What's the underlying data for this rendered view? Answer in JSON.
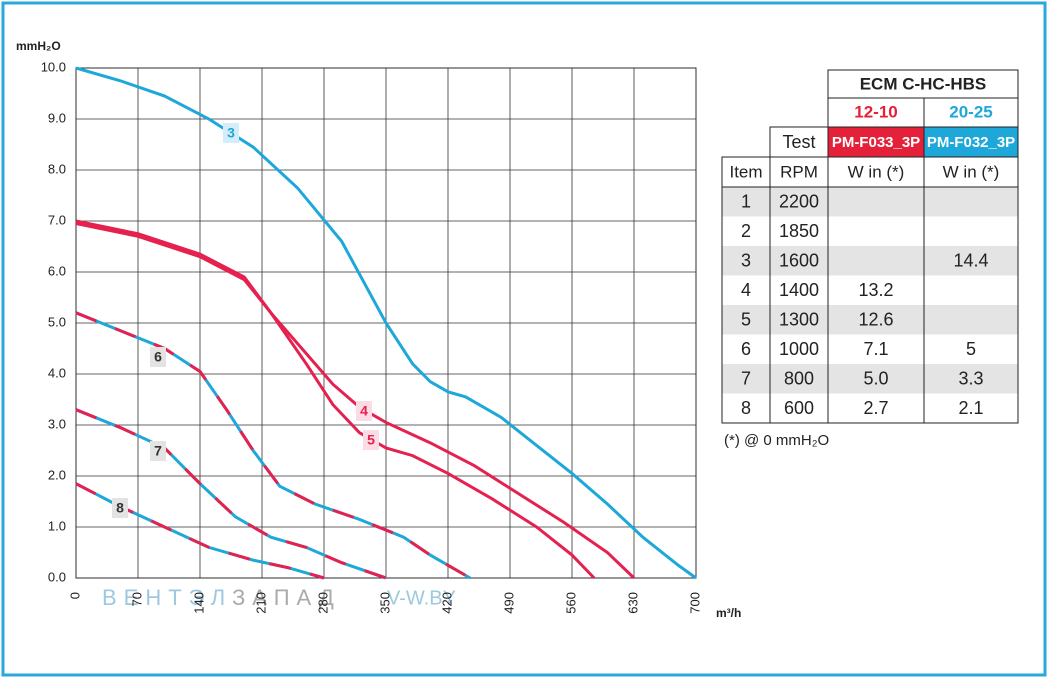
{
  "chart_data": {
    "type": "line",
    "y_label": "mmH₂O",
    "x_label": "m³/h",
    "xlim": [
      0,
      700
    ],
    "ylim": [
      0,
      10
    ],
    "xticks": [
      0,
      70,
      140,
      210,
      280,
      350,
      420,
      490,
      560,
      630,
      700
    ],
    "yticks": [
      {
        "value": 0,
        "label": "0.0"
      },
      {
        "value": 1,
        "label": "1.0"
      },
      {
        "value": 2,
        "label": "2.0"
      },
      {
        "value": 3,
        "label": "3.0"
      },
      {
        "value": 4,
        "label": "4.0"
      },
      {
        "value": 5,
        "label": "5.0"
      },
      {
        "value": 6,
        "label": "6.0"
      },
      {
        "value": 7,
        "label": "7.0"
      },
      {
        "value": 8,
        "label": "8.0"
      },
      {
        "value": 9,
        "label": "9.0"
      },
      {
        "value": 10,
        "label": "10.0"
      }
    ],
    "grid": true,
    "series": [
      {
        "name": "3",
        "color": "#1ea7d9",
        "dashed": false,
        "x": [
          0,
          50,
          100,
          150,
          200,
          250,
          300,
          350,
          380,
          400,
          420,
          440,
          480,
          520,
          560,
          600,
          640,
          680,
          700
        ],
        "values": [
          10,
          9.75,
          9.45,
          9.0,
          8.45,
          7.65,
          6.6,
          5.0,
          4.2,
          3.85,
          3.65,
          3.55,
          3.15,
          2.6,
          2.05,
          1.45,
          0.8,
          0.25,
          0
        ]
      },
      {
        "name": "4",
        "color": "#e5214f",
        "dashed": false,
        "x": [
          0,
          70,
          140,
          190,
          220,
          260,
          290,
          320,
          350,
          400,
          450,
          500,
          550,
          600,
          630
        ],
        "values": [
          7.0,
          6.75,
          6.35,
          5.9,
          5.2,
          4.4,
          3.8,
          3.35,
          3.05,
          2.65,
          2.2,
          1.65,
          1.1,
          0.5,
          0
        ]
      },
      {
        "name": "5",
        "color": "#e5214f",
        "dashed": false,
        "x": [
          0,
          70,
          140,
          190,
          220,
          260,
          290,
          320,
          350,
          380,
          420,
          470,
          520,
          560,
          585
        ],
        "values": [
          6.95,
          6.7,
          6.3,
          5.85,
          5.2,
          4.2,
          3.4,
          2.85,
          2.55,
          2.4,
          2.05,
          1.55,
          1.0,
          0.45,
          0
        ]
      },
      {
        "name": "6",
        "color": "#1ea7d9",
        "dash_color": "#e5214f",
        "dashed": true,
        "x": [
          0,
          50,
          100,
          140,
          170,
          200,
          230,
          270,
          320,
          370,
          400,
          445
        ],
        "values": [
          5.2,
          4.85,
          4.5,
          4.05,
          3.3,
          2.5,
          1.8,
          1.45,
          1.15,
          0.8,
          0.45,
          0
        ]
      },
      {
        "name": "7",
        "color": "#1ea7d9",
        "dash_color": "#e5214f",
        "dashed": true,
        "x": [
          0,
          50,
          100,
          140,
          180,
          220,
          260,
          300,
          350
        ],
        "values": [
          3.3,
          2.95,
          2.55,
          1.85,
          1.2,
          0.8,
          0.6,
          0.3,
          0
        ]
      },
      {
        "name": "8",
        "color": "#1ea7d9",
        "dash_color": "#e5214f",
        "dashed": true,
        "x": [
          0,
          50,
          100,
          150,
          200,
          240,
          270,
          280
        ],
        "values": [
          1.85,
          1.4,
          1.0,
          0.6,
          0.35,
          0.2,
          0.05,
          0
        ]
      }
    ]
  },
  "watermark": {
    "part1": "ВЕНТЭЛ",
    "part2": "ЗАПАД",
    "site": "V-W.BY"
  },
  "table": {
    "title": "ECM C-HC-HBS",
    "models": [
      "12-10",
      "20-25"
    ],
    "test": "Test",
    "codes": [
      "PM-F033_3P",
      "PM-F032_3P"
    ],
    "header": [
      "Item",
      "RPM",
      "W in (*)",
      "W in (*)"
    ],
    "rows": [
      [
        1,
        2200,
        null,
        null
      ],
      [
        2,
        1850,
        null,
        null
      ],
      [
        3,
        1600,
        null,
        14.4
      ],
      [
        4,
        1400,
        13.2,
        null
      ],
      [
        5,
        1300,
        12.6,
        null
      ],
      [
        6,
        1000,
        7.1,
        5.0
      ],
      [
        7,
        800,
        5.0,
        3.3
      ],
      [
        8,
        600,
        2.7,
        2.1
      ]
    ],
    "row_labels": [
      null,
      null,
      null,
      null,
      null,
      "7.1",
      "5.0",
      null
    ],
    "note": "(*) @ 0 mmH₂O"
  }
}
